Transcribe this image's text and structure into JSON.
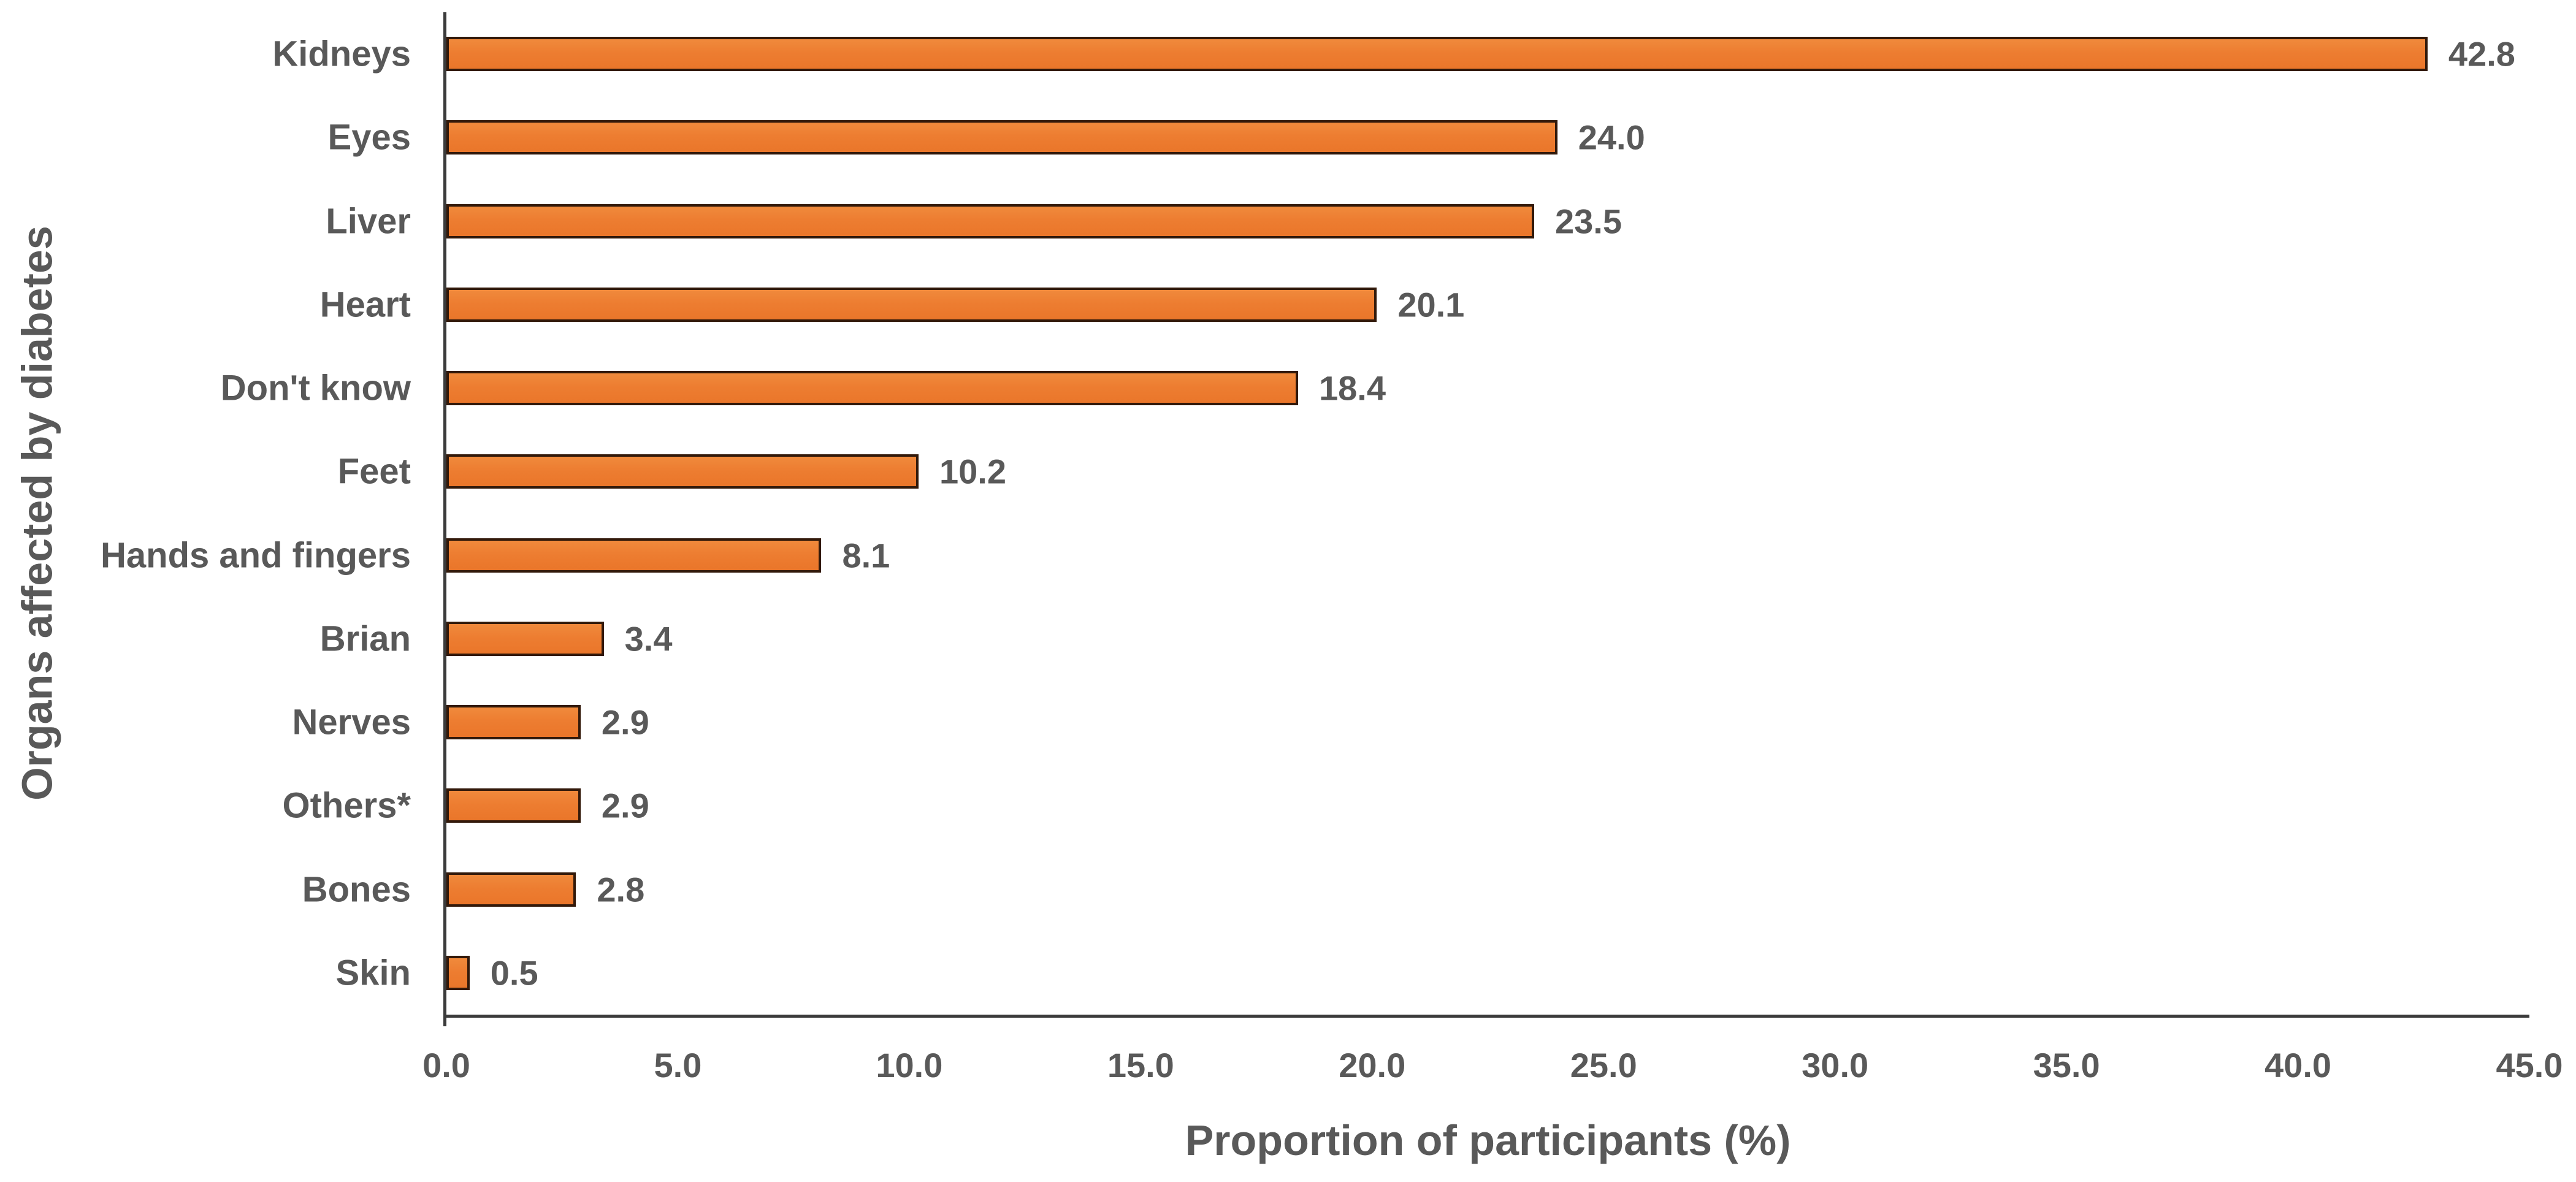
{
  "chart_data": {
    "type": "bar",
    "orientation": "horizontal",
    "title": "",
    "categories": [
      "Kidneys",
      "Eyes",
      "Liver",
      "Heart",
      "Don't know",
      "Feet",
      "Hands and fingers",
      "Brian",
      "Nerves",
      "Others*",
      "Bones",
      "Skin"
    ],
    "values": [
      42.8,
      24.0,
      23.5,
      20.1,
      18.4,
      10.2,
      8.1,
      3.4,
      2.9,
      2.9,
      2.8,
      0.5
    ],
    "value_labels": [
      "42.8",
      "24.0",
      "23.5",
      "20.1",
      "18.4",
      "10.2",
      "8.1",
      "3.4",
      "2.9",
      "2.9",
      "2.8",
      "0.5"
    ],
    "xlabel": "Proportion of participants (%)",
    "ylabel": "Organs affected by diabetes",
    "xlim": [
      0,
      45
    ],
    "xticks": [
      0,
      5,
      10,
      15,
      20,
      25,
      30,
      35,
      40,
      45
    ],
    "xtick_labels": [
      "0.0",
      "5.0",
      "10.0",
      "15.0",
      "20.0",
      "25.0",
      "30.0",
      "35.0",
      "40.0",
      "45.0"
    ],
    "grid": "off",
    "legend": "none",
    "colors": {
      "bar_fill": "#ED7D31",
      "bar_border": "#32190A",
      "axis_line": "#3B3B3B",
      "text": "#595959",
      "background": "#FFFFFF"
    }
  }
}
